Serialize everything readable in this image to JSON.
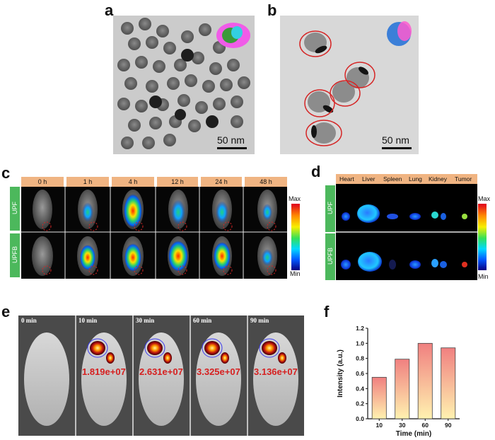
{
  "panels": {
    "a": {
      "letter": "a",
      "scale_label": "50 nm"
    },
    "b": {
      "letter": "b",
      "scale_label": "50 nm"
    },
    "c": {
      "letter": "c",
      "time_labels": [
        "0 h",
        "1 h",
        "4 h",
        "12 h",
        "24 h",
        "48 h"
      ],
      "row_labels": [
        "UPF",
        "UPFB"
      ],
      "colorbar": {
        "max": "Max",
        "min": "Min"
      }
    },
    "d": {
      "letter": "d",
      "organs": [
        "Heart",
        "Liver",
        "Spleen",
        "Lung",
        "Kidney",
        "Tumor"
      ],
      "row_labels": [
        "UPF",
        "UPFB"
      ],
      "colorbar": {
        "max": "Max",
        "min": "Min"
      }
    },
    "e": {
      "letter": "e",
      "time_labels": [
        "0 min",
        "10 min",
        "30 min",
        "60 min",
        "90 min"
      ],
      "intensity_values": [
        "",
        "1.819e+07",
        "2.631e+07",
        "3.325e+07",
        "3.136e+07"
      ]
    },
    "f": {
      "letter": "f"
    }
  },
  "chart_data": {
    "type": "bar",
    "categories": [
      "10",
      "30",
      "60",
      "90"
    ],
    "values": [
      0.55,
      0.79,
      1.0,
      0.94
    ],
    "xlabel": "Time (min)",
    "ylabel": "Intensity (a.u.)",
    "ylim": [
      0,
      1.2
    ],
    "yticks": [
      "0.0",
      "0.2",
      "0.4",
      "0.6",
      "0.8",
      "1.0",
      "1.2"
    ],
    "colors": {
      "bar_top": "#f08080",
      "bar_bottom": "#fff2b0",
      "bar_edge": "#444444"
    }
  }
}
